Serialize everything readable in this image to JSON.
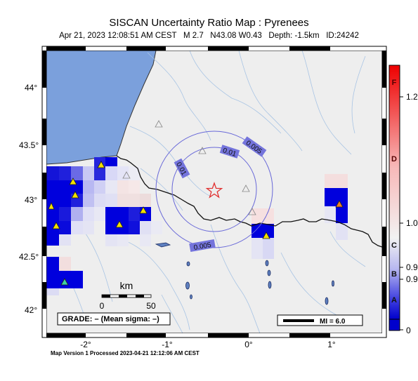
{
  "header": {
    "title": "SISCAN Uncertainty Ratio Map : Pyrenees",
    "subtitle": "Apr 21, 2023 12:08:51 AM CEST   M 2.7   N43.08 W0.43   Depth: -1.5km   ID:24242"
  },
  "footer": {
    "text": "Map Version 1 Processed 2023-04-21 12:12:06 AM CEST"
  },
  "axes": {
    "y_labels": [
      "44°",
      "43.5°",
      "43°",
      "42.5°",
      "42°"
    ],
    "x_labels": [
      "-2°",
      "-1°",
      "0°",
      "1°"
    ]
  },
  "contours": {
    "labels": [
      "0.01",
      "0.005",
      "0.01",
      "0.005"
    ]
  },
  "scalebar": {
    "unit": "km",
    "ticks": [
      "0",
      "50"
    ]
  },
  "grade_box": {
    "text": "GRADE: – (Mean sigma: –)"
  },
  "mi_box": {
    "text": "MI = 6.0"
  },
  "colorbar": {
    "grade_letters": [
      "F",
      "D",
      "C",
      "B",
      "A"
    ],
    "values": [
      "1.2",
      "1.0",
      "0.9",
      "0.9",
      "0"
    ]
  },
  "colors": {
    "land": "#eeeeee",
    "sea": "#7ba0dc",
    "high_cell": "#0000dd",
    "contour": "#6868d8",
    "epicenter": "#e03030"
  }
}
